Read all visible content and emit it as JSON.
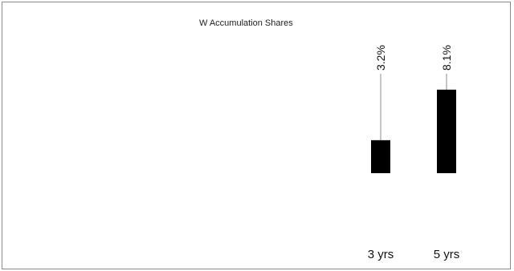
{
  "chart_data": {
    "type": "bar",
    "legend": {
      "title": "W Accumulation Shares",
      "placement": "top-left"
    },
    "categories": [
      "3 yrs",
      "5 yrs"
    ],
    "series": [
      {
        "name": "W Accumulation Shares",
        "values": [
          3.2,
          8.1
        ],
        "labels": [
          "3.2%",
          "8.1%"
        ],
        "color": "#000000"
      }
    ],
    "ylim": [
      -3,
      12
    ],
    "grid": false
  }
}
